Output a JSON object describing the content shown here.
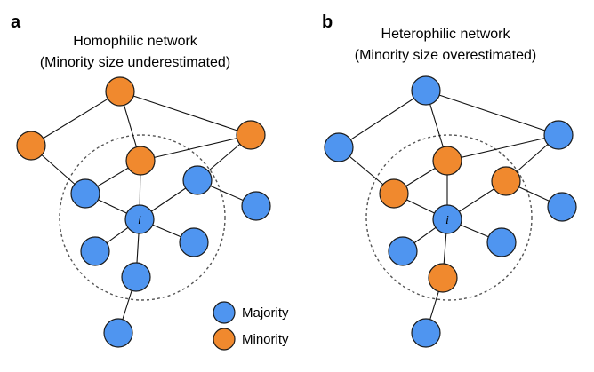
{
  "colors": {
    "majority": "#4f95f0",
    "minority": "#f0892e"
  },
  "panels": [
    {
      "letter": "a",
      "title_line1": "Homophilic network",
      "title_line2": "(Minority size underestimated)",
      "ego_label": "i"
    },
    {
      "letter": "b",
      "title_line1": "Heterophilic network",
      "title_line2": "(Minority size overestimated)",
      "ego_label": "i"
    }
  ],
  "legend": {
    "majority_label": "Majority",
    "minority_label": "Minority"
  }
}
